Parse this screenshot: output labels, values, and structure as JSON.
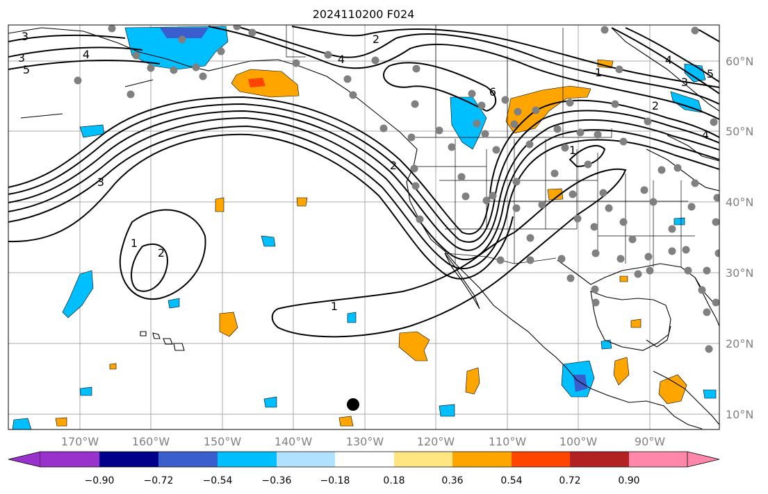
{
  "title": "2024110200 F024",
  "lat_labels": [
    "60°N",
    "50°N",
    "40°N",
    "30°N",
    "20°N",
    "10°N"
  ],
  "lon_labels": [
    "170°W",
    "160°W",
    "150°W",
    "140°W",
    "130°W",
    "120°W",
    "110°W",
    "100°W",
    "90°W"
  ],
  "colorbar": {
    "ticks": [
      "−0.90",
      "−0.72",
      "−0.54",
      "−0.36",
      "−0.18",
      "0.18",
      "0.36",
      "0.54",
      "0.72",
      "0.90"
    ],
    "colors": [
      "#9932cc",
      "#00008b",
      "#3a5fcd",
      "#00bfff",
      "#b0e2ff",
      "#ffffff",
      "#ffe680",
      "#ffa500",
      "#ff4500",
      "#b22222",
      "#ff88aa"
    ]
  },
  "contour_labels": [
    "1",
    "2",
    "3",
    "4",
    "5",
    "6"
  ],
  "colors": {
    "positive": "#ffa500",
    "strong_positive": "#ff4500",
    "negative": "#00bfff",
    "strong_negative": "#3a5fcd",
    "station": "#808080",
    "marker": "#000000"
  }
}
